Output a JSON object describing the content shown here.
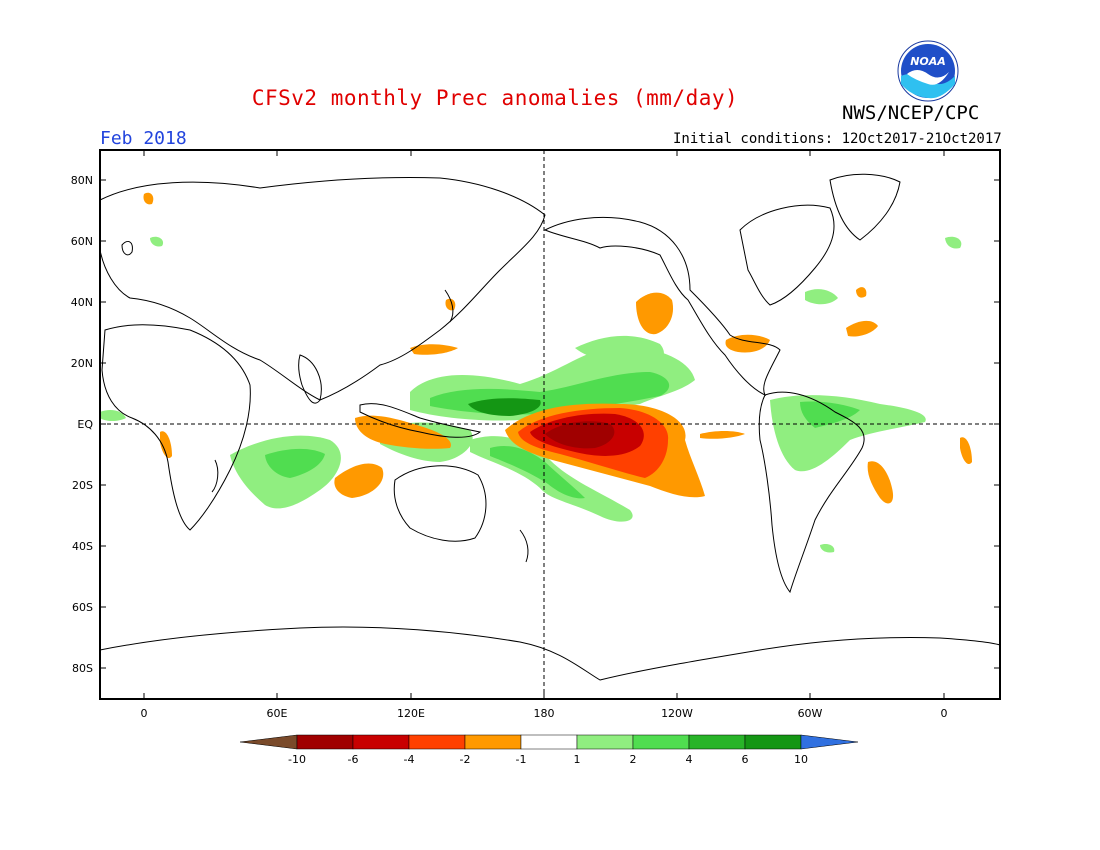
{
  "header": {
    "title": "CFSv2 monthly Prec anomalies (mm/day)",
    "agency": "NWS/NCEP/CPC",
    "month": "Feb 2018",
    "initial_conditions": "Initial conditions: 12Oct2017-21Oct2017",
    "logo_text": "NOAA"
  },
  "map": {
    "lat_labels": [
      "80N",
      "60N",
      "40N",
      "20N",
      "EQ",
      "20S",
      "40S",
      "60S",
      "80S"
    ],
    "lon_labels": [
      "0",
      "60E",
      "120E",
      "180",
      "120W",
      "60W",
      "0"
    ]
  },
  "legend": {
    "labels": [
      "-10",
      "-6",
      "-4",
      "-2",
      "-1",
      "1",
      "2",
      "4",
      "6",
      "10"
    ],
    "colors": [
      "#7a4a2a",
      "#a00000",
      "#c80000",
      "#ff4000",
      "#ff9900",
      "#ffffff",
      "#90ee80",
      "#50dd50",
      "#28b428",
      "#149614",
      "#3070e0"
    ]
  },
  "colors": {
    "dry_strong": "#a00000",
    "dry_mid": "#c80000",
    "dry": "#ff4000",
    "dry_weak": "#ff9900",
    "wet_weak": "#90ee80",
    "wet": "#50dd50",
    "wet_mid": "#28b428",
    "wet_strong": "#149614",
    "title_red": "#e00000",
    "month_blue": "#2244dd"
  }
}
